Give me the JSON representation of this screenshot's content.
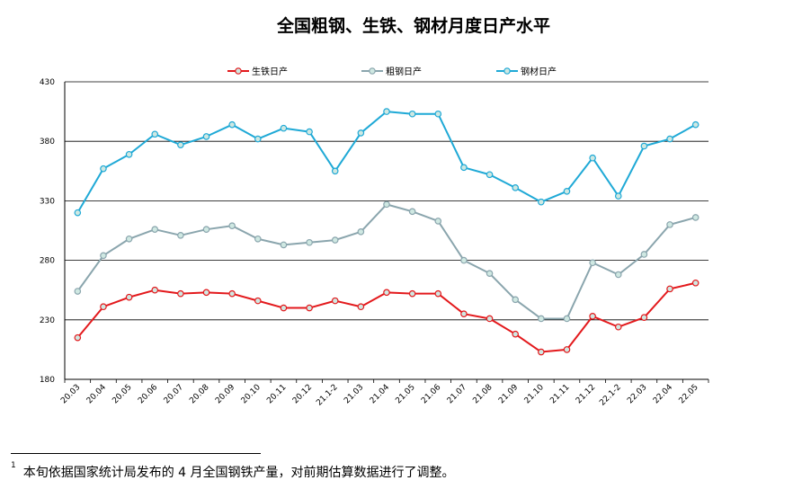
{
  "chart_data": {
    "type": "line",
    "title": "全国粗钢、生铁、钢材月度日产水平",
    "xlabel": "",
    "ylabel": "",
    "ylim": [
      180,
      430
    ],
    "yticks": [
      "180",
      "230",
      "280",
      "330",
      "380",
      "430"
    ],
    "grid": true,
    "legend_position": "top",
    "categories": [
      "20.03",
      "20.04",
      "20.05",
      "20.06",
      "20.07",
      "20.08",
      "20.09",
      "20.10",
      "20.11",
      "20.12",
      "21.1-2",
      "21.03",
      "21.04",
      "21.05",
      "21.06",
      "21.07",
      "21.08",
      "21.09",
      "21.10",
      "21.11",
      "21.12",
      "22.1-2",
      "22.03",
      "22.04",
      "22.05"
    ],
    "series": [
      {
        "name": "生铁日产",
        "color": "#e3191c",
        "values": [
          215,
          241,
          249,
          255,
          252,
          253,
          252,
          246,
          240,
          240,
          246,
          241,
          253,
          252,
          252,
          235,
          231,
          218,
          203,
          205,
          233,
          224,
          232,
          256,
          261
        ]
      },
      {
        "name": "粗钢日产",
        "color": "#8aa5ad",
        "values": [
          254,
          284,
          298,
          306,
          301,
          306,
          309,
          298,
          293,
          295,
          297,
          304,
          327,
          321,
          313,
          280,
          269,
          247,
          231,
          231,
          278,
          268,
          285,
          310,
          316
        ]
      },
      {
        "name": "钢材日产",
        "color": "#1fa9d6",
        "values": [
          320,
          357,
          369,
          386,
          377,
          384,
          394,
          382,
          391,
          388,
          355,
          387,
          405,
          403,
          403,
          358,
          352,
          341,
          329,
          338,
          366,
          334,
          376,
          382,
          394
        ]
      }
    ]
  },
  "footnote": {
    "marker": "1",
    "text": "本旬依据国家统计局发布的 4 月全国钢铁产量，对前期估算数据进行了调整。"
  }
}
